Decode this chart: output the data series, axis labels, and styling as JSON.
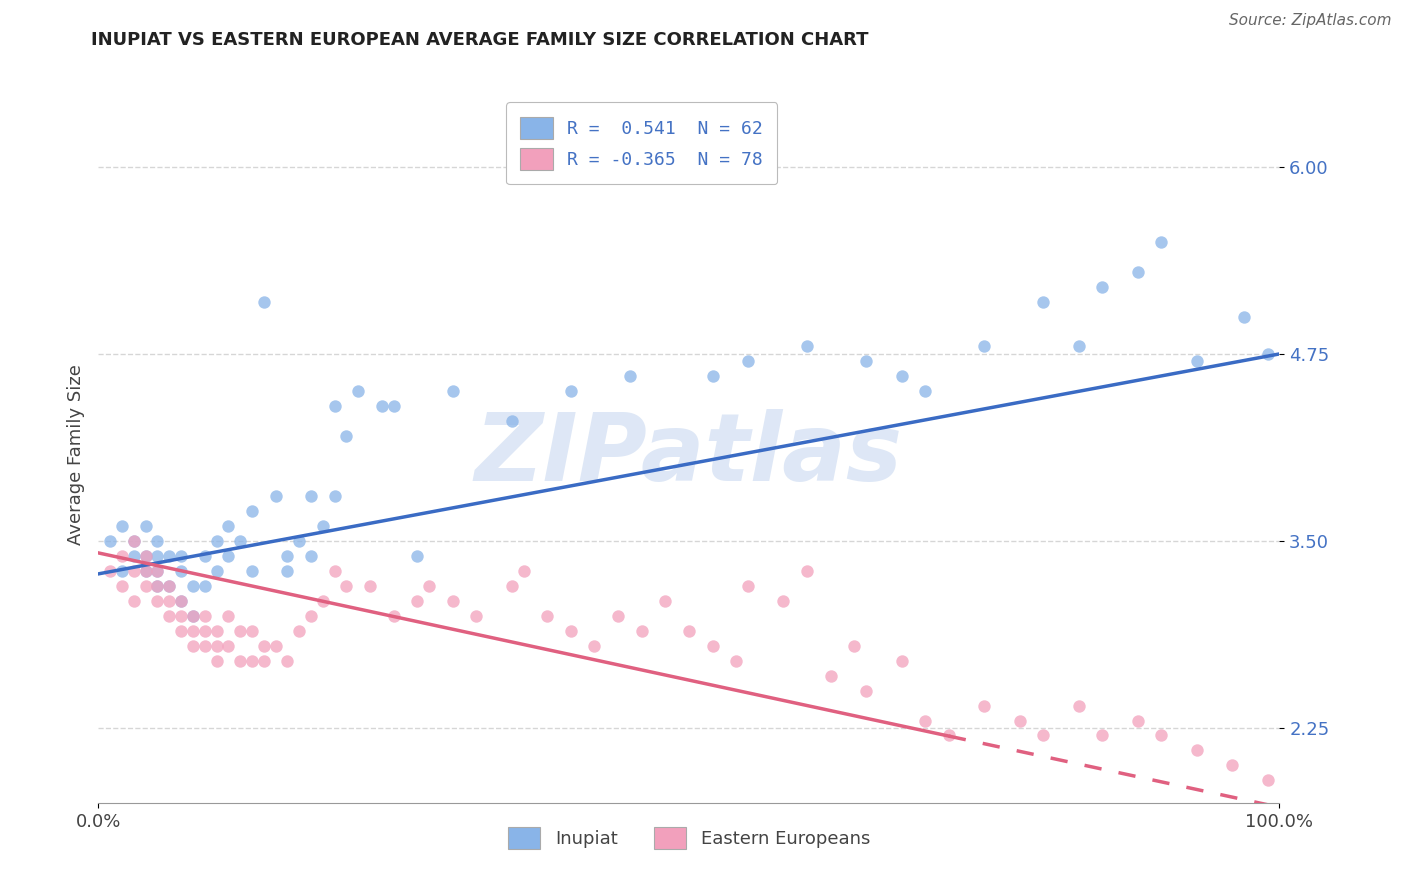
{
  "title": "INUPIAT VS EASTERN EUROPEAN AVERAGE FAMILY SIZE CORRELATION CHART",
  "source": "Source: ZipAtlas.com",
  "ylabel": "Average Family Size",
  "xlim": [
    0,
    100
  ],
  "ylim": [
    1.75,
    6.4
  ],
  "yticks": [
    2.25,
    3.5,
    4.75,
    6.0
  ],
  "xticklabels": [
    "0.0%",
    "100.0%"
  ],
  "inupiat_color": "#89b4e8",
  "eastern_color": "#f2a0bc",
  "line_blue": "#3a6bc4",
  "line_pink": "#e06080",
  "background_color": "#ffffff",
  "grid_color": "#cccccc",
  "label_color": "#4472c4",
  "title_color": "#222222",
  "source_color": "#666666",
  "inupiat_x": [
    1,
    2,
    2,
    3,
    3,
    4,
    4,
    4,
    5,
    5,
    5,
    5,
    6,
    6,
    7,
    7,
    7,
    8,
    8,
    9,
    9,
    10,
    10,
    11,
    11,
    12,
    13,
    13,
    14,
    15,
    16,
    16,
    17,
    18,
    18,
    19,
    20,
    20,
    21,
    22,
    24,
    25,
    27,
    30,
    35,
    40,
    45,
    52,
    55,
    60,
    65,
    68,
    70,
    75,
    80,
    83,
    85,
    88,
    90,
    93,
    97,
    99
  ],
  "inupiat_y": [
    3.5,
    3.3,
    3.6,
    3.4,
    3.5,
    3.3,
    3.4,
    3.6,
    3.2,
    3.3,
    3.4,
    3.5,
    3.2,
    3.4,
    3.1,
    3.3,
    3.4,
    3.0,
    3.2,
    3.2,
    3.4,
    3.3,
    3.5,
    3.4,
    3.6,
    3.5,
    3.3,
    3.7,
    5.1,
    3.8,
    3.3,
    3.4,
    3.5,
    3.4,
    3.8,
    3.6,
    4.4,
    3.8,
    4.2,
    4.5,
    4.4,
    4.4,
    3.4,
    4.5,
    4.3,
    4.5,
    4.6,
    4.6,
    4.7,
    4.8,
    4.7,
    4.6,
    4.5,
    4.8,
    5.1,
    4.8,
    5.2,
    5.3,
    5.5,
    4.7,
    5.0,
    4.75
  ],
  "eastern_x": [
    1,
    2,
    2,
    3,
    3,
    3,
    4,
    4,
    4,
    5,
    5,
    5,
    6,
    6,
    6,
    7,
    7,
    7,
    8,
    8,
    8,
    9,
    9,
    9,
    10,
    10,
    10,
    11,
    11,
    12,
    12,
    13,
    13,
    14,
    14,
    15,
    16,
    17,
    18,
    19,
    20,
    21,
    23,
    25,
    27,
    28,
    30,
    32,
    35,
    36,
    38,
    40,
    42,
    44,
    46,
    48,
    50,
    52,
    54,
    55,
    58,
    60,
    62,
    64,
    65,
    68,
    70,
    72,
    75,
    78,
    80,
    83,
    85,
    88,
    90,
    93,
    96,
    99
  ],
  "eastern_y": [
    3.3,
    3.2,
    3.4,
    3.1,
    3.3,
    3.5,
    3.2,
    3.3,
    3.4,
    3.1,
    3.2,
    3.3,
    3.0,
    3.1,
    3.2,
    2.9,
    3.0,
    3.1,
    2.8,
    2.9,
    3.0,
    2.8,
    2.9,
    3.0,
    2.7,
    2.8,
    2.9,
    2.8,
    3.0,
    2.7,
    2.9,
    2.7,
    2.9,
    2.7,
    2.8,
    2.8,
    2.7,
    2.9,
    3.0,
    3.1,
    3.3,
    3.2,
    3.2,
    3.0,
    3.1,
    3.2,
    3.1,
    3.0,
    3.2,
    3.3,
    3.0,
    2.9,
    2.8,
    3.0,
    2.9,
    3.1,
    2.9,
    2.8,
    2.7,
    3.2,
    3.1,
    3.3,
    2.6,
    2.8,
    2.5,
    2.7,
    2.3,
    2.2,
    2.4,
    2.3,
    2.2,
    2.4,
    2.2,
    2.3,
    2.2,
    2.1,
    2.0,
    1.9
  ],
  "inupiat_intercept": 3.28,
  "inupiat_slope": 0.0147,
  "eastern_intercept": 3.42,
  "eastern_slope": -0.017,
  "eastern_solid_end": 72,
  "watermark": "ZIPatlas",
  "watermark_color": "#c8d8f0"
}
